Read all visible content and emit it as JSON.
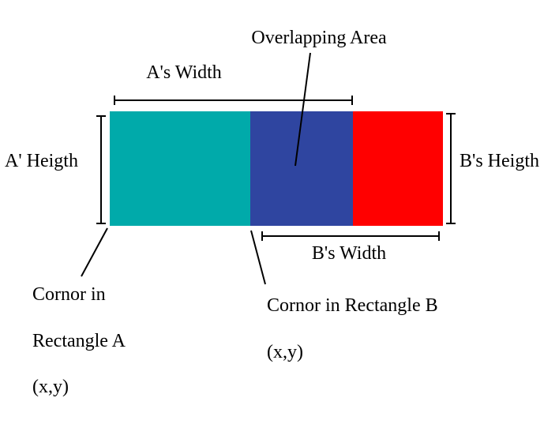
{
  "colors": {
    "rect_a_only": "#00aaaa",
    "overlap": "#2f45a0",
    "rect_b_only": "#ff0000"
  },
  "labels": {
    "overlap_area": "Overlapping Area",
    "a_width": "A's Width",
    "a_height": "A' Heigth",
    "b_height": "B's Heigth",
    "b_width": "B's Width",
    "corner_a_line1": "Cornor in",
    "corner_a_line2": "Rectangle A",
    "corner_a_line3": "(x,y)",
    "corner_b_line1": "Cornor in Rectangle B",
    "corner_b_line2": "(x,y)"
  }
}
